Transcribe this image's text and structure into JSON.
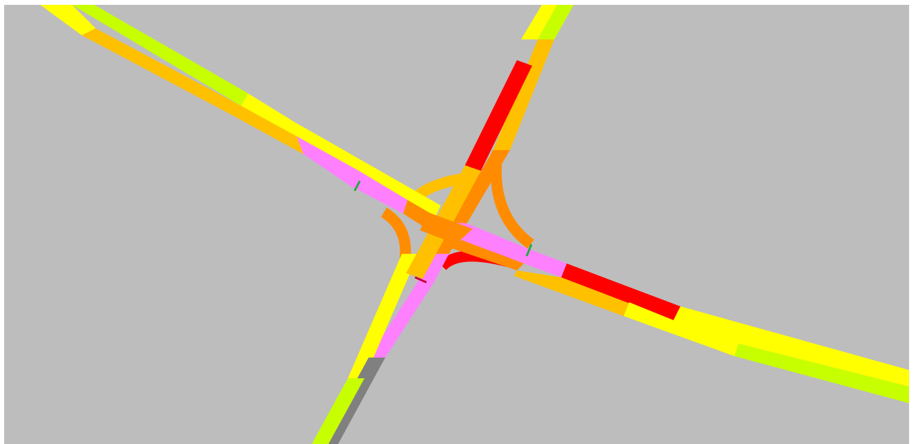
{
  "map": {
    "background_color": "#bdbdbd",
    "legend_colors": {
      "lime": "#c8ff00",
      "yellow": "#ffff00",
      "amber": "#ffc000",
      "orange": "#ff8c00",
      "red": "#ff0000",
      "pink": "#ff80ff",
      "gray": "#808080",
      "green_marker": "#22aa44",
      "red_marker": "#cc0033"
    },
    "roads": [
      "road-northwest-approach",
      "road-east-approach",
      "road-north-approach",
      "road-south-approach",
      "ramp-northwest",
      "ramp-southwest",
      "ramp-northeast",
      "ramp-southeast"
    ]
  }
}
